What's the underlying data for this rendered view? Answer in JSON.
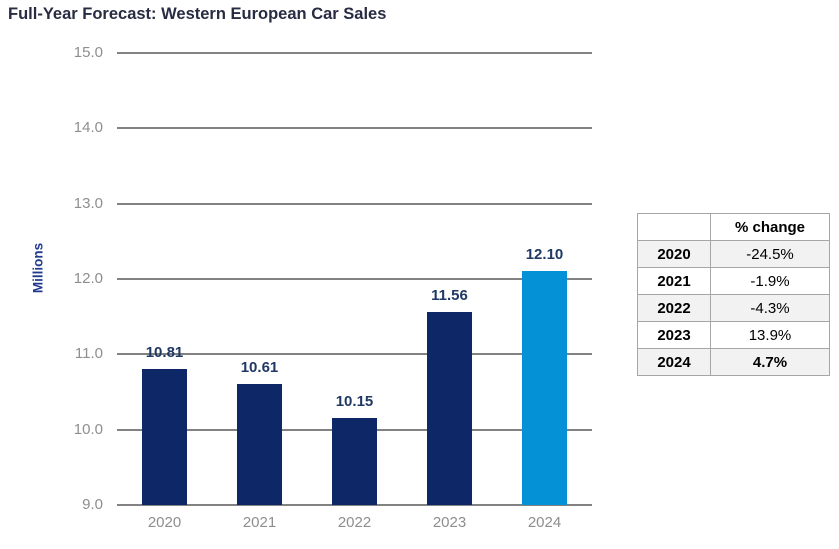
{
  "title": "Full-Year Forecast: Western European Car Sales",
  "chart_data": {
    "type": "bar",
    "title": "Full-Year Forecast: Western European Car Sales",
    "categories": [
      "2020",
      "2021",
      "2022",
      "2023",
      "2024"
    ],
    "values": [
      10.81,
      10.61,
      10.15,
      11.56,
      12.1
    ],
    "value_labels": [
      "10.81",
      "10.61",
      "10.15",
      "11.56",
      "12.10"
    ],
    "xlabel": "",
    "ylabel": "Millions",
    "ylim": [
      9.0,
      15.0
    ],
    "ytick_step": 1.0,
    "yticks": [
      "15.0",
      "14.0",
      "13.0",
      "12.0",
      "11.0",
      "10.0",
      "9.0"
    ],
    "grid": true,
    "legend": "none",
    "bar_colors": [
      "#0e2766",
      "#0e2766",
      "#0e2766",
      "#0e2766",
      "#0591d5"
    ],
    "highlight_index": 4,
    "value_label_color": "#1f3864",
    "gridline_color": "#828282",
    "axis_text_color": "#8e8e8e"
  },
  "table": {
    "header": [
      "",
      "% change"
    ],
    "rows": [
      {
        "year": "2020",
        "change": "-24.5%",
        "bold_value": false
      },
      {
        "year": "2021",
        "change": "-1.9%",
        "bold_value": false
      },
      {
        "year": "2022",
        "change": "-4.3%",
        "bold_value": false
      },
      {
        "year": "2023",
        "change": "13.9%",
        "bold_value": false
      },
      {
        "year": "2024",
        "change": "4.7%",
        "bold_value": true
      }
    ]
  }
}
